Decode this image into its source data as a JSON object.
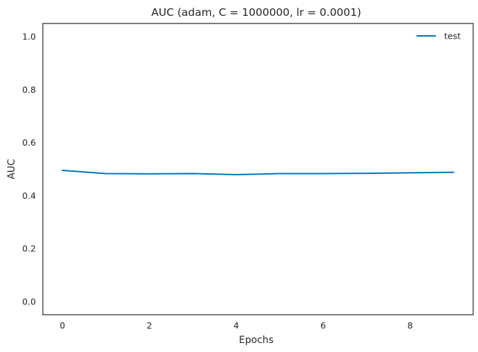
{
  "chart_data": {
    "type": "line",
    "title": "AUC (adam, C = 1000000, lr = 0.0001)",
    "xlabel": "Epochs",
    "ylabel": "AUC",
    "xlim": [
      -0.45,
      9.45
    ],
    "ylim": [
      -0.05,
      1.05
    ],
    "xticks": [
      0,
      2,
      4,
      6,
      8
    ],
    "xtick_labels": [
      "0",
      "2",
      "4",
      "6",
      "8"
    ],
    "yticks": [
      0.0,
      0.2,
      0.4,
      0.6,
      0.8,
      1.0
    ],
    "ytick_labels": [
      "0.0",
      "0.2",
      "0.4",
      "0.6",
      "0.8",
      "1.0"
    ],
    "grid": false,
    "legend_position": "top-right",
    "series": [
      {
        "name": "test",
        "color": "#0072b2",
        "x": [
          0,
          1,
          2,
          3,
          4,
          5,
          6,
          7,
          8,
          9
        ],
        "y": [
          0.495,
          0.483,
          0.482,
          0.483,
          0.479,
          0.483,
          0.483,
          0.484,
          0.486,
          0.488
        ]
      }
    ]
  }
}
